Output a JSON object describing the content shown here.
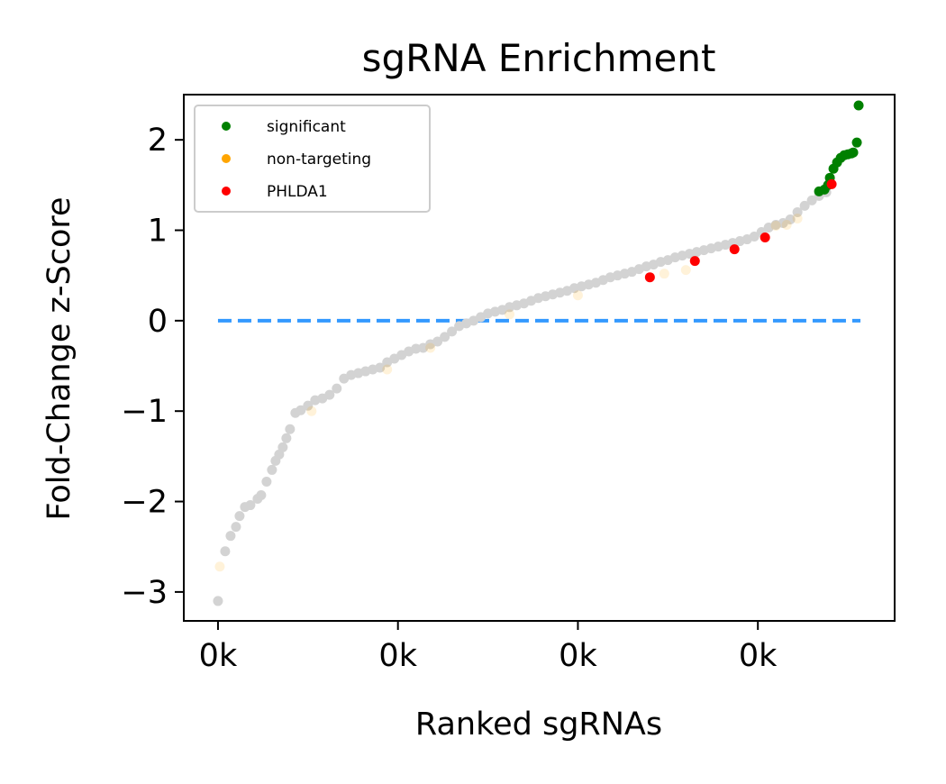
{
  "chart_data": {
    "type": "scatter",
    "title": "sgRNA Enrichment",
    "xlabel": "Ranked sgRNAs",
    "ylabel": "Fold-Change z-Score",
    "xlim": [
      -0.095,
      1.88
    ],
    "ylim": [
      -3.32,
      2.5
    ],
    "xticks": [
      {
        "value": 0,
        "label": "0k"
      },
      {
        "value": 0.5,
        "label": "0k"
      },
      {
        "value": 1.0,
        "label": "0k"
      },
      {
        "value": 1.5,
        "label": "0k"
      }
    ],
    "yticks": [
      {
        "value": -3,
        "label": "−3"
      },
      {
        "value": -2,
        "label": "−2"
      },
      {
        "value": -1,
        "label": "−1"
      },
      {
        "value": 0,
        "label": "0"
      },
      {
        "value": 1,
        "label": "1"
      },
      {
        "value": 2,
        "label": "2"
      }
    ],
    "reference_line": {
      "y": 0,
      "style": "dashed",
      "color": "#3399ff",
      "x_range": [
        0,
        1.785
      ]
    },
    "grid": false,
    "legend": {
      "placement": "top-left"
    },
    "background_series": {
      "name": "",
      "color": "#d3d3d3",
      "x": [
        0.0,
        0.02,
        0.035,
        0.05,
        0.06,
        0.075,
        0.09,
        0.11,
        0.12,
        0.135,
        0.15,
        0.16,
        0.17,
        0.18,
        0.19,
        0.2,
        0.215,
        0.23,
        0.25,
        0.27,
        0.29,
        0.31,
        0.33,
        0.35,
        0.37,
        0.39,
        0.41,
        0.43,
        0.45,
        0.47,
        0.49,
        0.51,
        0.53,
        0.55,
        0.57,
        0.59,
        0.61,
        0.63,
        0.65,
        0.67,
        0.69,
        0.71,
        0.73,
        0.75,
        0.77,
        0.79,
        0.81,
        0.83,
        0.85,
        0.87,
        0.89,
        0.91,
        0.93,
        0.95,
        0.97,
        0.99,
        1.01,
        1.03,
        1.05,
        1.07,
        1.09,
        1.11,
        1.13,
        1.15,
        1.17,
        1.19,
        1.21,
        1.23,
        1.25,
        1.27,
        1.29,
        1.31,
        1.33,
        1.35,
        1.37,
        1.39,
        1.41,
        1.43,
        1.45,
        1.47,
        1.49,
        1.51,
        1.53,
        1.55,
        1.57,
        1.59,
        1.61,
        1.63,
        1.65,
        1.67,
        1.69
      ],
      "y": [
        -3.1,
        -2.55,
        -2.38,
        -2.28,
        -2.16,
        -2.06,
        -2.04,
        -1.97,
        -1.93,
        -1.78,
        -1.65,
        -1.55,
        -1.48,
        -1.4,
        -1.3,
        -1.2,
        -1.02,
        -0.99,
        -0.94,
        -0.88,
        -0.86,
        -0.82,
        -0.75,
        -0.64,
        -0.6,
        -0.58,
        -0.56,
        -0.54,
        -0.52,
        -0.46,
        -0.42,
        -0.38,
        -0.34,
        -0.31,
        -0.3,
        -0.26,
        -0.23,
        -0.18,
        -0.12,
        -0.06,
        -0.03,
        0.0,
        0.04,
        0.08,
        0.1,
        0.12,
        0.15,
        0.17,
        0.19,
        0.22,
        0.25,
        0.27,
        0.29,
        0.31,
        0.33,
        0.36,
        0.38,
        0.4,
        0.42,
        0.45,
        0.48,
        0.5,
        0.52,
        0.54,
        0.57,
        0.6,
        0.62,
        0.65,
        0.67,
        0.7,
        0.72,
        0.74,
        0.76,
        0.78,
        0.8,
        0.82,
        0.84,
        0.86,
        0.88,
        0.9,
        0.93,
        0.98,
        1.03,
        1.06,
        1.08,
        1.12,
        1.2,
        1.27,
        1.33,
        1.38,
        1.42
      ]
    },
    "series": [
      {
        "name": "significant",
        "color": "#008000",
        "x": [
          1.67,
          1.685,
          1.695,
          1.7,
          1.71,
          1.72,
          1.73,
          1.74,
          1.75,
          1.76,
          1.765,
          1.775,
          1.78
        ],
        "y": [
          1.43,
          1.45,
          1.5,
          1.58,
          1.68,
          1.75,
          1.8,
          1.83,
          1.84,
          1.85,
          1.86,
          1.97,
          2.38
        ]
      },
      {
        "name": "non-targeting",
        "color": "#ffa500",
        "x": [
          0.005,
          0.26,
          0.47,
          0.59,
          0.81,
          1.0,
          1.24,
          1.3,
          1.55,
          1.58,
          1.61
        ],
        "y": [
          -2.72,
          -1.0,
          -0.54,
          -0.3,
          0.07,
          0.28,
          0.52,
          0.56,
          1.05,
          1.06,
          1.13
        ]
      },
      {
        "name": "PHLDA1",
        "color": "#ff0000",
        "x": [
          1.2,
          1.325,
          1.435,
          1.52,
          1.705
        ],
        "y": [
          0.48,
          0.66,
          0.79,
          0.92,
          1.51
        ]
      }
    ]
  }
}
